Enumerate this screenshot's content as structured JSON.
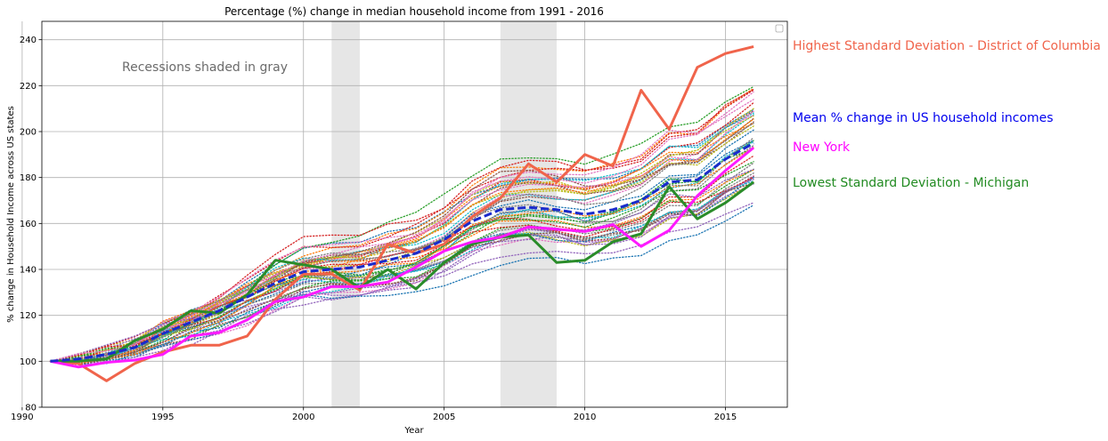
{
  "chart_data": {
    "type": "line",
    "title": "Percentage (%) change in median household income from 1991 - 2016",
    "xlabel": "Year",
    "ylabel": "% change in Household Income across US states",
    "xlim": [
      1990.7,
      2017.2
    ],
    "ylim": [
      80,
      248
    ],
    "xticks": [
      1990,
      1995,
      2000,
      2005,
      2010,
      2015
    ],
    "yticks": [
      80,
      100,
      120,
      140,
      160,
      180,
      200,
      220,
      240
    ],
    "grid": true,
    "legend": "top-right, empty",
    "recessions": [
      {
        "start": 2001,
        "end": 2002
      },
      {
        "start": 2007,
        "end": 2009
      }
    ],
    "recession_note": "Recessions shaded in gray",
    "years": [
      1991,
      1992,
      1993,
      1994,
      1995,
      1996,
      1997,
      1998,
      1999,
      2000,
      2001,
      2002,
      2003,
      2004,
      2005,
      2006,
      2007,
      2008,
      2009,
      2010,
      2011,
      2012,
      2013,
      2014,
      2015,
      2016
    ],
    "background_states_color_cycle": [
      "#1f77b4",
      "#ff7f0e",
      "#2ca02c",
      "#d62728",
      "#9467bd",
      "#8c564b",
      "#e377c2",
      "#7f7f7f",
      "#bcbd22",
      "#17becf"
    ],
    "series": [
      {
        "name": "Highest Standard Deviation - District of Columbia",
        "color": "#f0644b",
        "values": [
          100,
          99,
          91.5,
          99,
          104,
          107,
          107,
          111,
          127,
          138,
          138,
          131,
          151,
          147,
          151,
          163,
          171,
          186,
          178,
          190,
          185,
          218,
          201,
          228,
          234,
          237
        ]
      },
      {
        "name": "Mean % change in US household incomes",
        "color": "#1a2bcc",
        "values": [
          100,
          101,
          103,
          106,
          112,
          117,
          122,
          128,
          134,
          139,
          140,
          141,
          144,
          147,
          153,
          161,
          166,
          167,
          166,
          164,
          166,
          170,
          178,
          179,
          188,
          195
        ]
      },
      {
        "name": "New York",
        "color": "#ff1aff",
        "values": [
          100,
          97.5,
          99.5,
          100.5,
          103,
          111,
          112.5,
          118,
          126,
          128,
          132.5,
          132.5,
          134.5,
          141,
          148,
          152,
          154,
          158.5,
          157.5,
          156.5,
          159.5,
          150,
          157,
          172,
          183,
          193
        ]
      },
      {
        "name": "Lowest Standard Deviation - Michigan",
        "color": "#2a8c2a",
        "values": [
          100,
          100,
          101,
          109,
          114,
          122,
          121,
          129,
          144,
          142,
          140,
          132,
          140,
          131.5,
          143,
          151,
          154,
          155,
          143,
          144,
          152,
          155.5,
          176,
          162,
          169,
          178
        ]
      }
    ],
    "annotations": [
      {
        "text": "Highest Standard Deviation - District of Columbia",
        "color": "#f0644b"
      },
      {
        "text": "Mean % change in US household incomes",
        "color": "#0000ee"
      },
      {
        "text": "New York",
        "color": "#ff00ff"
      },
      {
        "text": "Lowest Standard Deviation - Michigan",
        "color": "#228b22"
      }
    ]
  }
}
